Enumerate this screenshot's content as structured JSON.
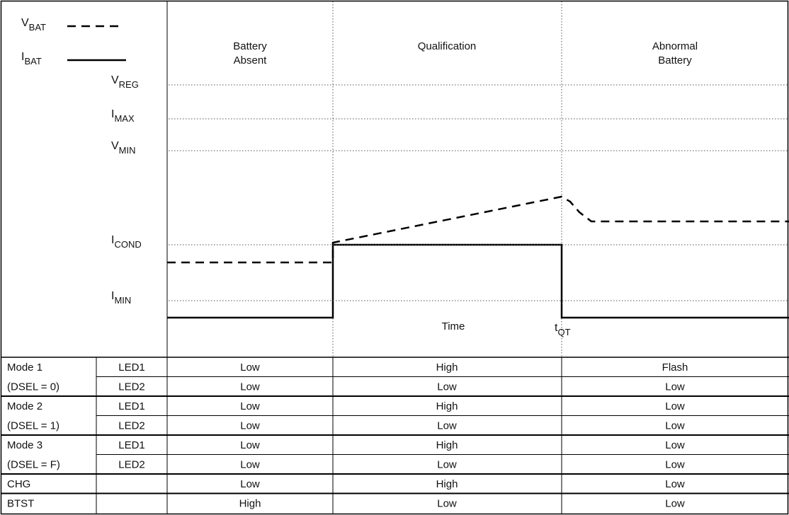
{
  "legend": [
    {
      "main": "V",
      "sub": "BAT"
    },
    {
      "main": "I",
      "sub": "BAT"
    }
  ],
  "levels": [
    {
      "main": "V",
      "sub": "REG"
    },
    {
      "main": "I",
      "sub": "MAX"
    },
    {
      "main": "V",
      "sub": "MIN"
    },
    {
      "main": "I",
      "sub": "COND"
    },
    {
      "main": "I",
      "sub": "MIN"
    }
  ],
  "phases": [
    [
      "Battery",
      "Absent"
    ],
    [
      "Qualification"
    ],
    [
      "Abnormal",
      "Battery"
    ]
  ],
  "axis": {
    "time": "Time",
    "marker": {
      "main": "t",
      "sub": "QT"
    }
  },
  "table": {
    "rows": [
      {
        "mode": "Mode 1",
        "signal": "LED1",
        "cells": [
          "Low",
          "High",
          "Flash"
        ]
      },
      {
        "mode": "(DSEL = 0)",
        "signal": "LED2",
        "cells": [
          "Low",
          "Low",
          "Low"
        ]
      },
      {
        "mode": "Mode 2",
        "signal": "LED1",
        "cells": [
          "Low",
          "High",
          "Low"
        ]
      },
      {
        "mode": "(DSEL = 1)",
        "signal": "LED2",
        "cells": [
          "Low",
          "Low",
          "Low"
        ]
      },
      {
        "mode": "Mode 3",
        "signal": "LED1",
        "cells": [
          "Low",
          "High",
          "Low"
        ]
      },
      {
        "mode": "(DSEL = F)",
        "signal": "LED2",
        "cells": [
          "Low",
          "Low",
          "Low"
        ]
      },
      {
        "mode": "CHG",
        "cells": [
          "Low",
          "High",
          "Low"
        ]
      },
      {
        "mode": "BTST",
        "cells": [
          "High",
          "Low",
          "Low"
        ]
      }
    ]
  }
}
